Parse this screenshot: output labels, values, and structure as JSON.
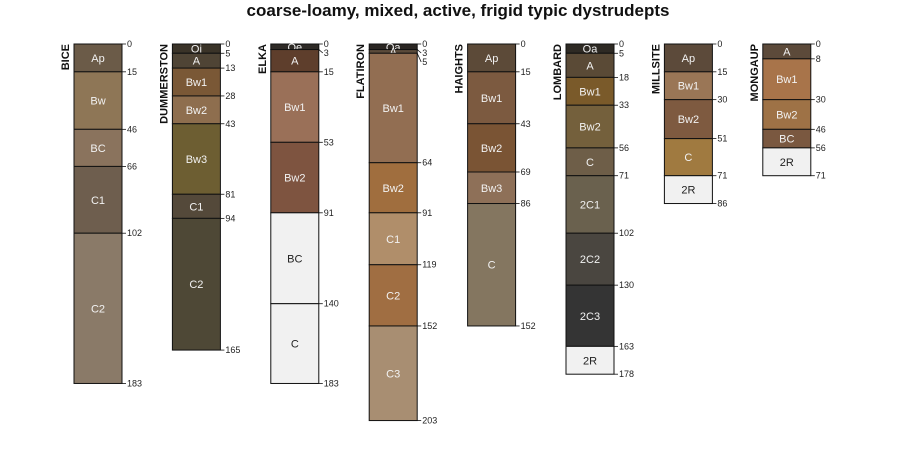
{
  "chart_data": {
    "type": "soil-profile-sketch",
    "title": "coarse-loamy, mixed, active, frigid typic dystrudepts",
    "depth_units": "cm",
    "depth_range": [
      0,
      203
    ],
    "profiles": [
      {
        "name": "BICE",
        "horizons": [
          {
            "name": "Ap",
            "top": 0,
            "bottom": 15,
            "color": "#6b5b48"
          },
          {
            "name": "Bw",
            "top": 15,
            "bottom": 46,
            "color": "#8e7656"
          },
          {
            "name": "BC",
            "top": 46,
            "bottom": 66,
            "color": "#8a735d"
          },
          {
            "name": "C1",
            "top": 66,
            "bottom": 102,
            "color": "#6e5e4e"
          },
          {
            "name": "C2",
            "top": 102,
            "bottom": 183,
            "color": "#8a7a68"
          }
        ]
      },
      {
        "name": "DUMMERSTON",
        "horizons": [
          {
            "name": "Oi",
            "top": 0,
            "bottom": 5,
            "color": "#3a3328"
          },
          {
            "name": "A",
            "top": 5,
            "bottom": 13,
            "color": "#4f4435"
          },
          {
            "name": "Bw1",
            "top": 13,
            "bottom": 28,
            "color": "#7a5836"
          },
          {
            "name": "Bw2",
            "top": 28,
            "bottom": 43,
            "color": "#8e6e4e"
          },
          {
            "name": "Bw3",
            "top": 43,
            "bottom": 81,
            "color": "#6d5e32"
          },
          {
            "name": "C1",
            "top": 81,
            "bottom": 94,
            "color": "#54493a"
          },
          {
            "name": "C2",
            "top": 94,
            "bottom": 165,
            "color": "#4e4836"
          }
        ]
      },
      {
        "name": "ELKA",
        "horizons": [
          {
            "name": "Oe",
            "top": 0,
            "bottom": 3,
            "color": "#2e2a26"
          },
          {
            "name": "A",
            "top": 3,
            "bottom": 15,
            "color": "#5e3e2c"
          },
          {
            "name": "Bw1",
            "top": 15,
            "bottom": 53,
            "color": "#9a7058"
          },
          {
            "name": "Bw2",
            "top": 53,
            "bottom": 91,
            "color": "#7e5440"
          },
          {
            "name": "BC",
            "top": 91,
            "bottom": 140,
            "color": "#f1f1f1"
          },
          {
            "name": "C",
            "top": 140,
            "bottom": 183,
            "color": "#f1f1f1"
          }
        ]
      },
      {
        "name": "FLATIRON",
        "horizons": [
          {
            "name": "Oa",
            "top": 0,
            "bottom": 3,
            "color": "#2a2622"
          },
          {
            "name": "A",
            "top": 3,
            "bottom": 5,
            "color": "#5a4a3a"
          },
          {
            "name": "Bw1",
            "top": 5,
            "bottom": 64,
            "color": "#926e52"
          },
          {
            "name": "Bw2",
            "top": 64,
            "bottom": 91,
            "color": "#a06e3e"
          },
          {
            "name": "C1",
            "top": 91,
            "bottom": 119,
            "color": "#b08e6a"
          },
          {
            "name": "C2",
            "top": 119,
            "bottom": 152,
            "color": "#a06e42"
          },
          {
            "name": "C3",
            "top": 152,
            "bottom": 203,
            "color": "#a88e72"
          }
        ]
      },
      {
        "name": "HAIGHTS",
        "horizons": [
          {
            "name": "Ap",
            "top": 0,
            "bottom": 15,
            "color": "#5c4a38"
          },
          {
            "name": "Bw1",
            "top": 15,
            "bottom": 43,
            "color": "#7c5a40"
          },
          {
            "name": "Bw2",
            "top": 43,
            "bottom": 69,
            "color": "#7a5434"
          },
          {
            "name": "Bw3",
            "top": 69,
            "bottom": 86,
            "color": "#8e7058"
          },
          {
            "name": "C",
            "top": 86,
            "bottom": 152,
            "color": "#847660"
          }
        ]
      },
      {
        "name": "LOMBARD",
        "horizons": [
          {
            "name": "Oa",
            "top": 0,
            "bottom": 5,
            "color": "#2e2a24"
          },
          {
            "name": "A",
            "top": 5,
            "bottom": 18,
            "color": "#5a4a36"
          },
          {
            "name": "Bw1",
            "top": 18,
            "bottom": 33,
            "color": "#7a5a2a"
          },
          {
            "name": "Bw2",
            "top": 33,
            "bottom": 56,
            "color": "#74603c"
          },
          {
            "name": "C",
            "top": 56,
            "bottom": 71,
            "color": "#6e5e48"
          },
          {
            "name": "2C1",
            "top": 71,
            "bottom": 102,
            "color": "#6a614e"
          },
          {
            "name": "2C2",
            "top": 102,
            "bottom": 130,
            "color": "#4a4640"
          },
          {
            "name": "2C3",
            "top": 130,
            "bottom": 163,
            "color": "#343434"
          },
          {
            "name": "2R",
            "top": 163,
            "bottom": 178,
            "color": "#f1f1f1"
          }
        ]
      },
      {
        "name": "MILLSITE",
        "horizons": [
          {
            "name": "Ap",
            "top": 0,
            "bottom": 15,
            "color": "#5c4a3a"
          },
          {
            "name": "Bw1",
            "top": 15,
            "bottom": 30,
            "color": "#9a7656"
          },
          {
            "name": "Bw2",
            "top": 30,
            "bottom": 51,
            "color": "#7e5a40"
          },
          {
            "name": "C",
            "top": 51,
            "bottom": 71,
            "color": "#a07a40"
          },
          {
            "name": "2R",
            "top": 71,
            "bottom": 86,
            "color": "#f1f1f1"
          }
        ]
      },
      {
        "name": "MONGAUP",
        "horizons": [
          {
            "name": "A",
            "top": 0,
            "bottom": 8,
            "color": "#5c4a3a"
          },
          {
            "name": "Bw1",
            "top": 8,
            "bottom": 30,
            "color": "#a8744a"
          },
          {
            "name": "Bw2",
            "top": 30,
            "bottom": 46,
            "color": "#9e7246"
          },
          {
            "name": "BC",
            "top": 46,
            "bottom": 56,
            "color": "#7a5840"
          },
          {
            "name": "2R",
            "top": 56,
            "bottom": 71,
            "color": "#f1f1f1"
          }
        ]
      }
    ]
  }
}
